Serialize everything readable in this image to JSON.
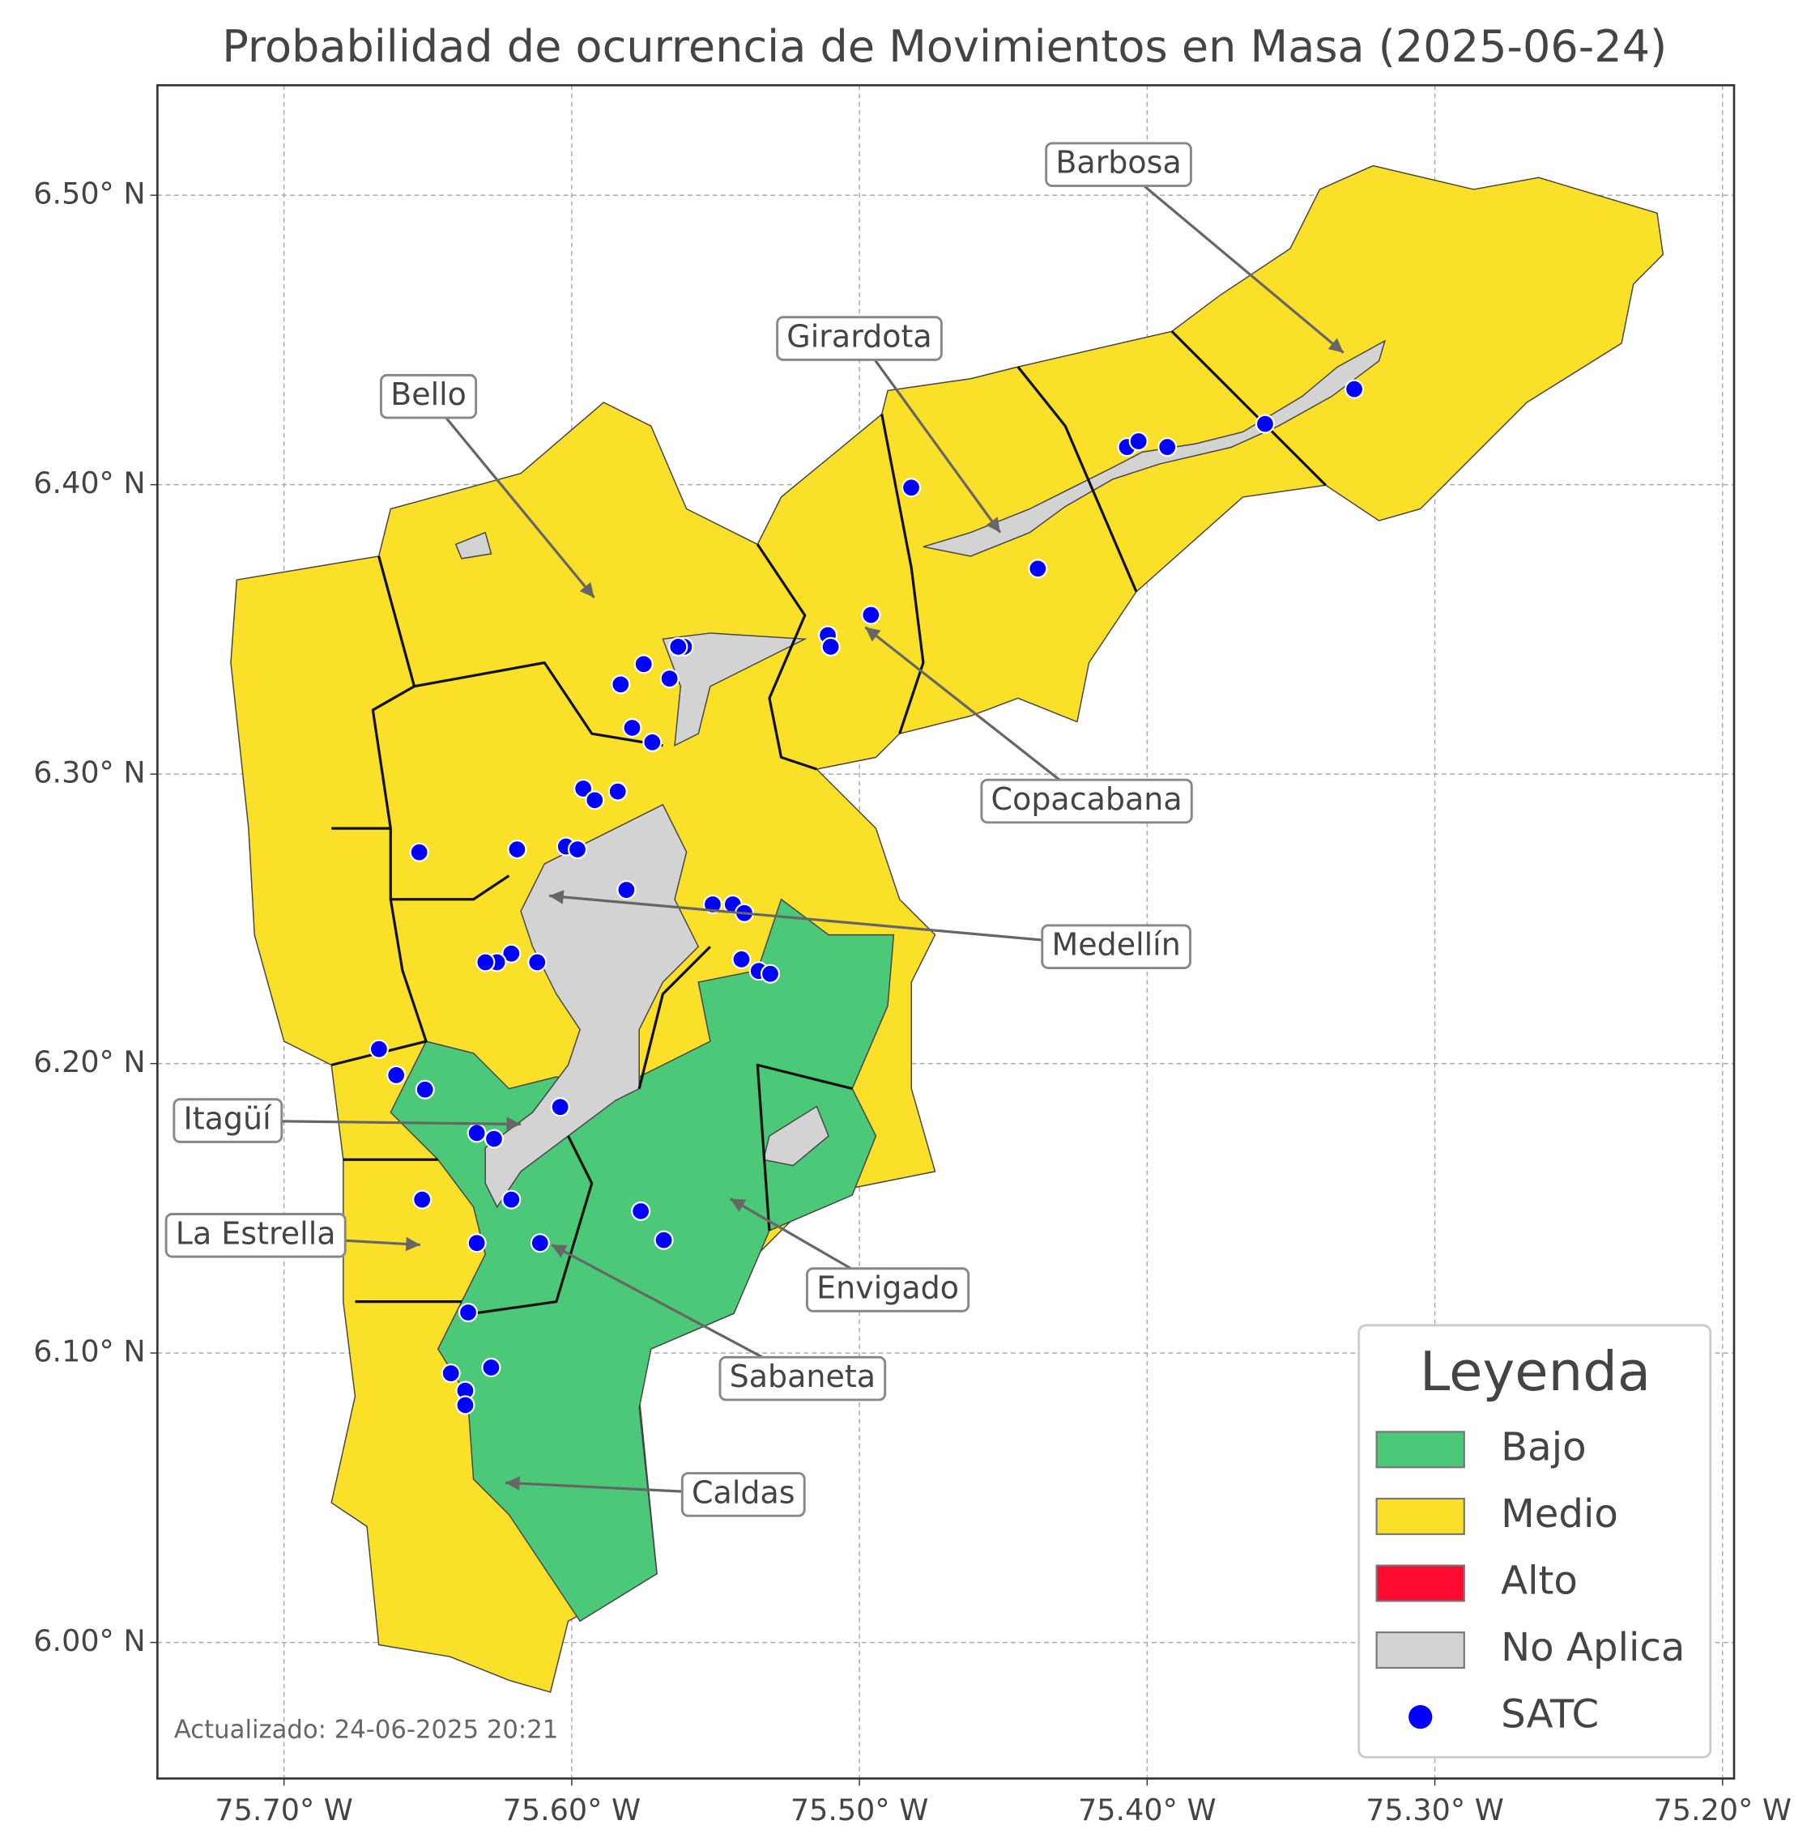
{
  "chart_data": {
    "type": "map",
    "title": "Probabilidad de ocurrencia de Movimientos en Masa (2025-06-24)",
    "xlim": [
      -75.744,
      -75.196
    ],
    "ylim": [
      5.953,
      6.538
    ],
    "xticks": [
      {
        "value": -75.7,
        "label": "75.70° W"
      },
      {
        "value": -75.6,
        "label": "75.60° W"
      },
      {
        "value": -75.5,
        "label": "75.50° W"
      },
      {
        "value": -75.4,
        "label": "75.40° W"
      },
      {
        "value": -75.3,
        "label": "75.30° W"
      },
      {
        "value": -75.2,
        "label": "75.20° W"
      }
    ],
    "yticks": [
      {
        "value": 6.0,
        "label": "6.00° N"
      },
      {
        "value": 6.1,
        "label": "6.10° N"
      },
      {
        "value": 6.2,
        "label": "6.20° N"
      },
      {
        "value": 6.3,
        "label": "6.30° N"
      },
      {
        "value": 6.4,
        "label": "6.40° N"
      },
      {
        "value": 6.5,
        "label": "6.50° N"
      }
    ],
    "grid": true,
    "legend": {
      "title": "Leyenda",
      "position": "lower right",
      "items": [
        {
          "name": "Bajo",
          "color": "#4bc878"
        },
        {
          "name": "Medio",
          "color": "#fbe029"
        },
        {
          "name": "Alto",
          "color": "#ff0a30"
        },
        {
          "name": "No Aplica",
          "color": "#d3d3d3"
        }
      ]
    },
    "series": [
      {
        "name": "SATC",
        "color": "#0000ff",
        "x": [
          -75.482,
          -75.407,
          -75.403,
          -75.393,
          -75.359,
          -75.328,
          -75.438,
          -75.496,
          -75.511,
          -75.51,
          -75.561,
          -75.563,
          -75.575,
          -75.566,
          -75.583,
          -75.579,
          -75.572,
          -75.596,
          -75.592,
          -75.584,
          -75.619,
          -75.653,
          -75.602,
          -75.598,
          -75.581,
          -75.551,
          -75.544,
          -75.54,
          -75.541,
          -75.535,
          -75.531,
          -75.621,
          -75.626,
          -75.63,
          -75.612,
          -75.667,
          -75.661,
          -75.651,
          -75.604,
          -75.633,
          -75.627,
          -75.621,
          -75.652,
          -75.576,
          -75.568,
          -75.633,
          -75.611,
          -75.636,
          -75.642,
          -75.628,
          -75.637,
          -75.637
        ],
        "y": [
          6.399,
          6.413,
          6.415,
          6.413,
          6.421,
          6.433,
          6.371,
          6.355,
          6.348,
          6.344,
          6.344,
          6.344,
          6.338,
          6.333,
          6.331,
          6.316,
          6.311,
          6.295,
          6.291,
          6.294,
          6.274,
          6.273,
          6.275,
          6.274,
          6.26,
          6.255,
          6.255,
          6.252,
          6.236,
          6.232,
          6.231,
          6.238,
          6.235,
          6.235,
          6.235,
          6.205,
          6.196,
          6.191,
          6.185,
          6.176,
          6.174,
          6.153,
          6.153,
          6.149,
          6.139,
          6.138,
          6.138,
          6.114,
          6.093,
          6.095,
          6.087,
          6.082
        ]
      }
    ],
    "annotations": [
      "Barbosa",
      "Girardota",
      "Bello",
      "Copacabana",
      "Medellín",
      "Itagüí",
      "La Estrella",
      "Envigado",
      "Sabaneta",
      "Caldas"
    ],
    "footnote": "Actualizado: 24-06-2025 20:21"
  }
}
